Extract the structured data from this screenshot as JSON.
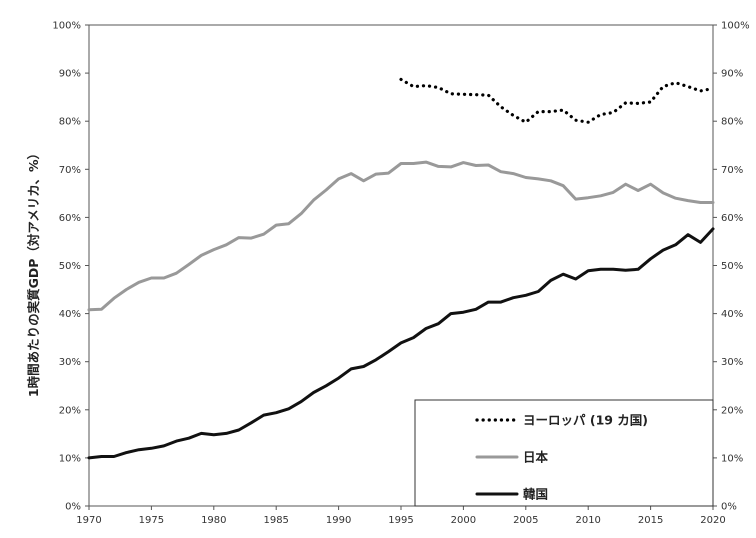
{
  "chart_data": {
    "type": "line",
    "title": "",
    "ylabel": "1時間あたりの実質GDP（対アメリカ、%）",
    "xlabel": "",
    "xlim": [
      1970,
      2020
    ],
    "ylim": [
      0,
      100
    ],
    "x_ticks": [
      "1970",
      "1975",
      "1980",
      "1985",
      "1990",
      "1995",
      "2000",
      "2005",
      "2010",
      "2015",
      "2020"
    ],
    "y_ticks": [
      "0%",
      "10%",
      "20%",
      "30%",
      "40%",
      "50%",
      "60%",
      "70%",
      "80%",
      "90%",
      "100%"
    ],
    "legend_position": "bottom-right",
    "grid": false,
    "series": [
      {
        "name": "ヨーロッパ (19 カ国)",
        "style": "dotted",
        "color": "#000000",
        "points": [
          [
            1995,
            88.7
          ],
          [
            1996,
            87.2
          ],
          [
            1997,
            87.4
          ],
          [
            1998,
            87.0
          ],
          [
            1999,
            85.7
          ],
          [
            2000,
            85.6
          ],
          [
            2001,
            85.5
          ],
          [
            2002,
            85.4
          ],
          [
            2003,
            83.0
          ],
          [
            2004,
            81.2
          ],
          [
            2005,
            79.8
          ],
          [
            2006,
            82.0
          ],
          [
            2007,
            82.0
          ],
          [
            2008,
            82.3
          ],
          [
            2009,
            80.2
          ],
          [
            2010,
            79.8
          ],
          [
            2011,
            81.4
          ],
          [
            2012,
            81.8
          ],
          [
            2013,
            83.8
          ],
          [
            2014,
            83.7
          ],
          [
            2015,
            84.0
          ],
          [
            2016,
            87.2
          ],
          [
            2017,
            88.0
          ],
          [
            2018,
            87.2
          ],
          [
            2019,
            86.3
          ],
          [
            2020,
            86.8
          ]
        ]
      },
      {
        "name": "日本",
        "style": "solid",
        "color": "#999999",
        "points": [
          [
            1970,
            40.8
          ],
          [
            1971,
            40.9
          ],
          [
            1972,
            43.2
          ],
          [
            1973,
            45.0
          ],
          [
            1974,
            46.5
          ],
          [
            1975,
            47.4
          ],
          [
            1976,
            47.4
          ],
          [
            1977,
            48.4
          ],
          [
            1978,
            50.2
          ],
          [
            1979,
            52.1
          ],
          [
            1980,
            53.3
          ],
          [
            1981,
            54.3
          ],
          [
            1982,
            55.8
          ],
          [
            1983,
            55.7
          ],
          [
            1984,
            56.5
          ],
          [
            1985,
            58.4
          ],
          [
            1986,
            58.7
          ],
          [
            1987,
            60.8
          ],
          [
            1988,
            63.6
          ],
          [
            1989,
            65.7
          ],
          [
            1990,
            68.0
          ],
          [
            1991,
            69.1
          ],
          [
            1992,
            67.6
          ],
          [
            1993,
            69.0
          ],
          [
            1994,
            69.2
          ],
          [
            1995,
            71.2
          ],
          [
            1996,
            71.2
          ],
          [
            1997,
            71.5
          ],
          [
            1998,
            70.6
          ],
          [
            1999,
            70.5
          ],
          [
            2000,
            71.4
          ],
          [
            2001,
            70.8
          ],
          [
            2002,
            70.9
          ],
          [
            2003,
            69.5
          ],
          [
            2004,
            69.1
          ],
          [
            2005,
            68.3
          ],
          [
            2006,
            68.0
          ],
          [
            2007,
            67.6
          ],
          [
            2008,
            66.6
          ],
          [
            2009,
            63.8
          ],
          [
            2010,
            64.1
          ],
          [
            2011,
            64.5
          ],
          [
            2012,
            65.2
          ],
          [
            2013,
            66.9
          ],
          [
            2014,
            65.6
          ],
          [
            2015,
            66.9
          ],
          [
            2016,
            65.1
          ],
          [
            2017,
            64.0
          ],
          [
            2018,
            63.5
          ],
          [
            2019,
            63.1
          ],
          [
            2020,
            63.1
          ]
        ]
      },
      {
        "name": "韓国",
        "style": "solid",
        "color": "#111111",
        "points": [
          [
            1970,
            10.0
          ],
          [
            1971,
            10.3
          ],
          [
            1972,
            10.3
          ],
          [
            1973,
            11.1
          ],
          [
            1974,
            11.7
          ],
          [
            1975,
            12.0
          ],
          [
            1976,
            12.5
          ],
          [
            1977,
            13.5
          ],
          [
            1978,
            14.1
          ],
          [
            1979,
            15.1
          ],
          [
            1980,
            14.8
          ],
          [
            1981,
            15.1
          ],
          [
            1982,
            15.8
          ],
          [
            1983,
            17.3
          ],
          [
            1984,
            18.9
          ],
          [
            1985,
            19.4
          ],
          [
            1986,
            20.2
          ],
          [
            1987,
            21.7
          ],
          [
            1988,
            23.6
          ],
          [
            1989,
            25.0
          ],
          [
            1990,
            26.6
          ],
          [
            1991,
            28.5
          ],
          [
            1992,
            29.0
          ],
          [
            1993,
            30.4
          ],
          [
            1994,
            32.1
          ],
          [
            1995,
            33.9
          ],
          [
            1996,
            35.0
          ],
          [
            1997,
            36.9
          ],
          [
            1998,
            37.9
          ],
          [
            1999,
            40.0
          ],
          [
            2000,
            40.3
          ],
          [
            2001,
            40.9
          ],
          [
            2002,
            42.4
          ],
          [
            2003,
            42.4
          ],
          [
            2004,
            43.3
          ],
          [
            2005,
            43.8
          ],
          [
            2006,
            44.6
          ],
          [
            2007,
            46.9
          ],
          [
            2008,
            48.2
          ],
          [
            2009,
            47.2
          ],
          [
            2010,
            48.9
          ],
          [
            2011,
            49.2
          ],
          [
            2012,
            49.2
          ],
          [
            2013,
            49.0
          ],
          [
            2014,
            49.2
          ],
          [
            2015,
            51.4
          ],
          [
            2016,
            53.2
          ],
          [
            2017,
            54.3
          ],
          [
            2018,
            56.4
          ],
          [
            2019,
            54.8
          ],
          [
            2020,
            57.6
          ]
        ]
      }
    ]
  }
}
